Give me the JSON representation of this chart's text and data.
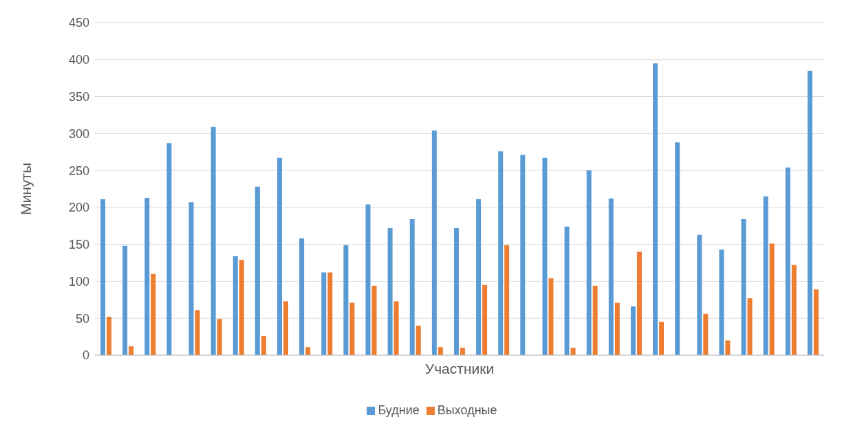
{
  "chart_data": {
    "type": "bar",
    "xlabel": "Участники",
    "ylabel": "Минуты",
    "categories": [
      null,
      null,
      null,
      null,
      null,
      null,
      null,
      null,
      null,
      null,
      null,
      null,
      null,
      null,
      null,
      null,
      null,
      null,
      null,
      null,
      null,
      null,
      null,
      null,
      null,
      null,
      null,
      null,
      null,
      null,
      null,
      null,
      null
    ],
    "series": [
      {
        "name": "Будние",
        "color": "#5b9bd5",
        "values": [
          211,
          148,
          213,
          287,
          207,
          309,
          134,
          228,
          267,
          158,
          112,
          149,
          204,
          172,
          184,
          304,
          172,
          211,
          276,
          271,
          267,
          174,
          250,
          212,
          66,
          395,
          288,
          163,
          143,
          184,
          215,
          254,
          385
        ]
      },
      {
        "name": "Выходные",
        "color": "#ed7d31",
        "values": [
          52,
          12,
          110,
          0,
          61,
          49,
          129,
          26,
          73,
          11,
          112,
          71,
          94,
          73,
          40,
          11,
          10,
          95,
          149,
          0,
          104,
          10,
          94,
          71,
          140,
          45,
          0,
          56,
          20,
          77,
          151,
          122,
          89
        ]
      }
    ],
    "ylim": [
      0,
      450
    ],
    "yticks": [
      0,
      50,
      100,
      150,
      200,
      250,
      300,
      350,
      400,
      450
    ],
    "grid": "y",
    "legend": "bottom"
  }
}
